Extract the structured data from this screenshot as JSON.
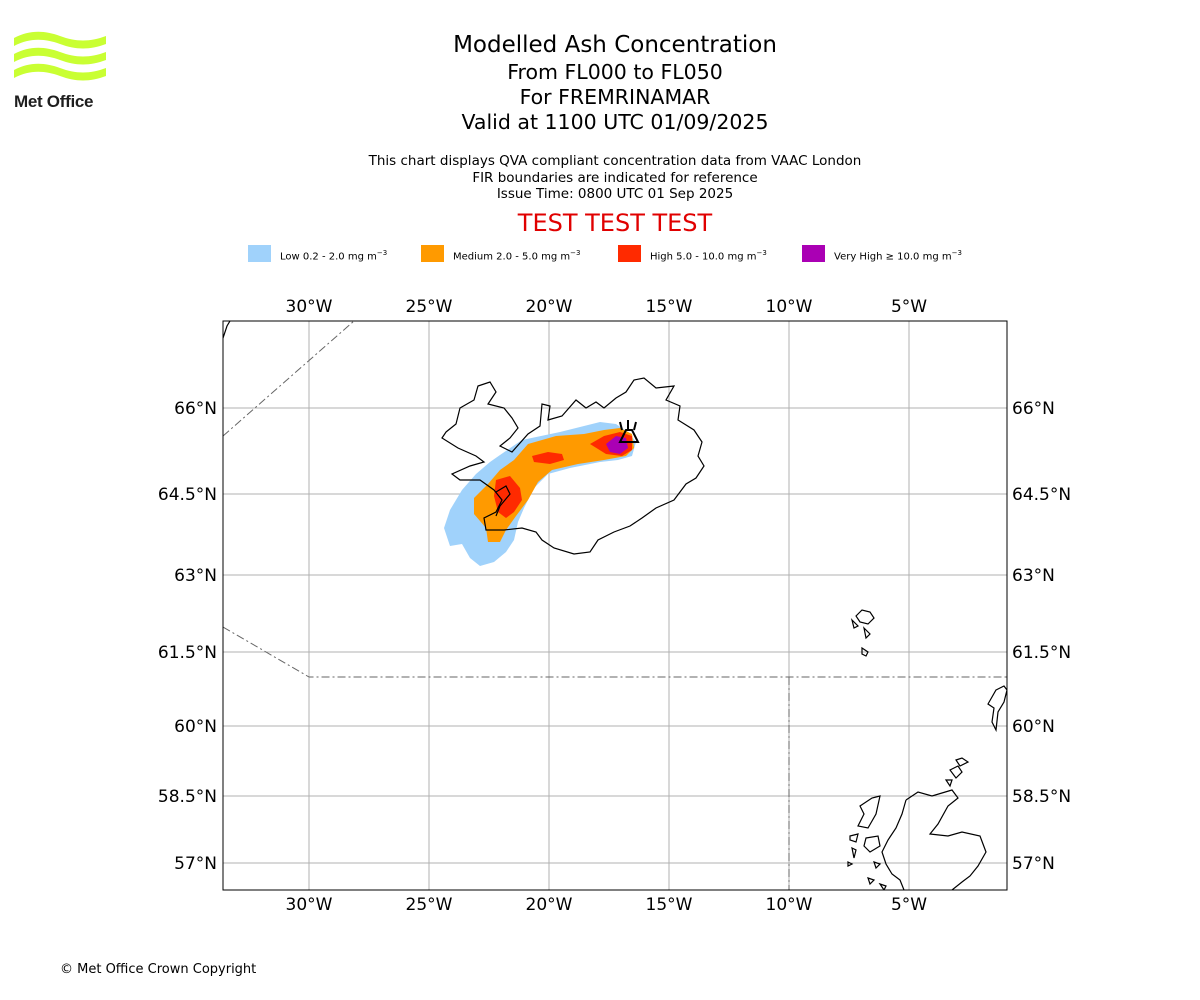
{
  "brand": {
    "logo_text": "Met Office",
    "logo_color": "#c9ff33"
  },
  "header": {
    "title": "Modelled Ash Concentration",
    "levels": "From FL000 to FL050",
    "region": "For FREMRINAMAR",
    "valid": "Valid at 1100 UTC 01/09/2025",
    "note_1": "This chart displays QVA compliant concentration data from VAAC London",
    "note_2": "FIR boundaries are indicated for reference",
    "issue_time": "Issue Time: 0800 UTC 01 Sep 2025",
    "test_banner": "TEST TEST TEST",
    "test_color": "#e00000"
  },
  "legend": [
    {
      "name": "Low",
      "label": "Low 0.2 - 2.0 mg m",
      "unit_exp": "−3",
      "color": "#a0d2fb"
    },
    {
      "name": "Medium",
      "label": "Medium 2.0 - 5.0 mg m",
      "unit_exp": "−3",
      "color": "#ff9a00"
    },
    {
      "name": "High",
      "label": "High 5.0 - 10.0 mg m",
      "unit_exp": "−3",
      "color": "#ff2a00"
    },
    {
      "name": "Very High",
      "label": "Very High  ≥  10.0 mg m",
      "unit_exp": "−3",
      "color": "#aa00b4"
    }
  ],
  "map": {
    "lon_ticks": [
      "30°W",
      "25°W",
      "20°W",
      "15°W",
      "10°W",
      "5°W"
    ],
    "lat_ticks": [
      "66°N",
      "64.5°N",
      "63°N",
      "61.5°N",
      "60°N",
      "58.5°N",
      "57°N"
    ],
    "grid": true,
    "source_symbol": "volcano-icon"
  },
  "footer": {
    "copyright": "© Met Office Crown Copyright"
  }
}
